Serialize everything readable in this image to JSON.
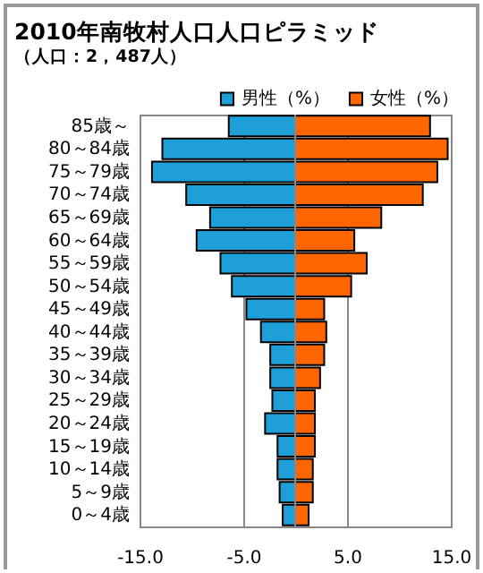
{
  "chart_data": {
    "type": "bar",
    "orientation": "horizontal",
    "title": "2010年南牧村人口人口ピラミッド",
    "subtitle": "（人口：2，487人）",
    "categories": [
      "85歳～",
      "80～84歳",
      "75～79歳",
      "70～74歳",
      "65～69歳",
      "60～64歳",
      "55～59歳",
      "50～54歳",
      "45～49歳",
      "40～44歳",
      "35～39歳",
      "30～34歳",
      "25～29歳",
      "20～24歳",
      "15～19歳",
      "10～14歳",
      "5～9歳",
      "0～4歳"
    ],
    "series": [
      {
        "name": "男性（%）",
        "color": "#1e9fd8",
        "values": [
          -6.4,
          -12.8,
          -13.8,
          -10.5,
          -8.2,
          -9.5,
          -7.2,
          -6.1,
          -4.7,
          -3.3,
          -2.4,
          -2.4,
          -2.2,
          -2.9,
          -1.7,
          -1.7,
          -1.5,
          -1.2
        ]
      },
      {
        "name": "女性（%）",
        "color": "#ff6600",
        "values": [
          13.0,
          14.7,
          13.7,
          12.3,
          8.3,
          5.7,
          6.9,
          5.4,
          2.8,
          3.0,
          2.8,
          2.4,
          1.9,
          1.9,
          1.9,
          1.7,
          1.7,
          1.3
        ]
      }
    ],
    "xlim": [
      -15,
      15
    ],
    "xticks": [
      {
        "value": -15,
        "label": "-15.0"
      },
      {
        "value": -5,
        "label": "-5.0"
      },
      {
        "value": 5,
        "label": "5.0"
      },
      {
        "value": 15,
        "label": "15.0"
      }
    ],
    "grid": "x",
    "legend": "top right",
    "stacked": true
  }
}
